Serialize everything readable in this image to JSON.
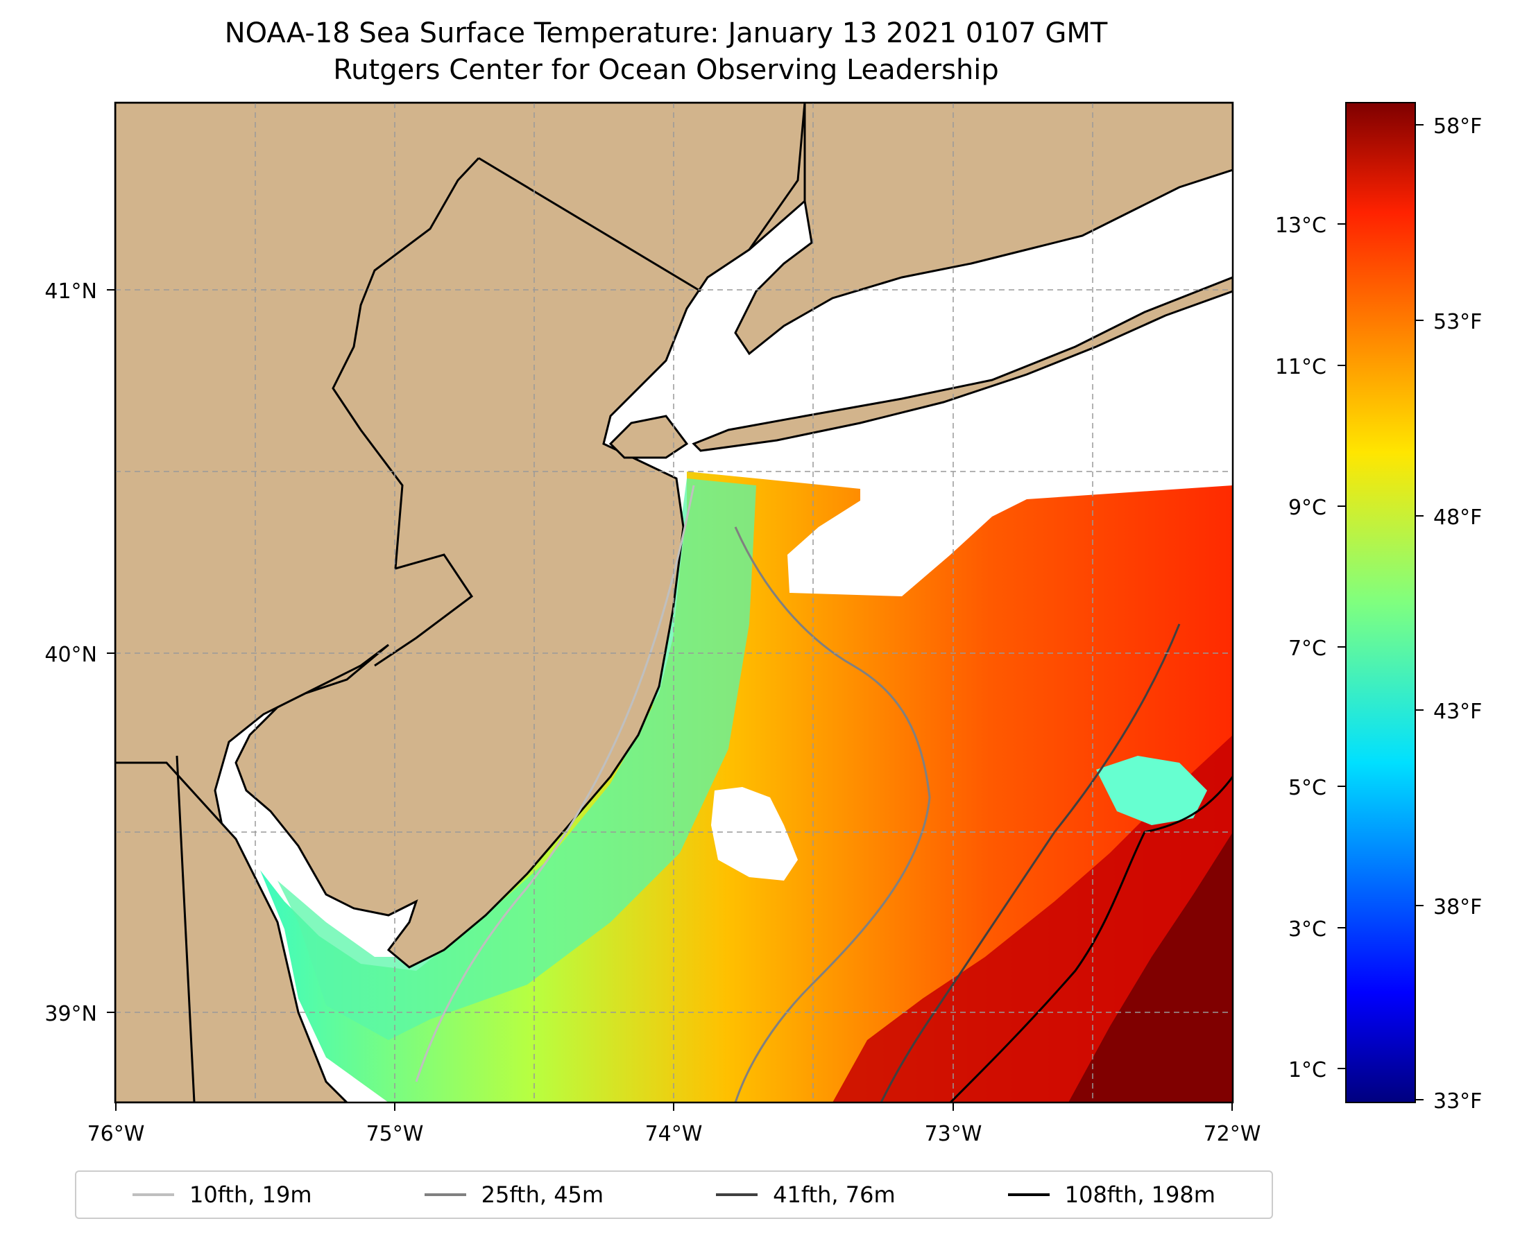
{
  "title": {
    "line1": "NOAA-18 Sea Surface Temperature: January 13 2021 0107 GMT",
    "line2": "Rutgers Center for Ocean Observing Leadership"
  },
  "map": {
    "lon_ticks": [
      "76°W",
      "75°W",
      "74°W",
      "73°W",
      "72°W"
    ],
    "lat_ticks": [
      "41°N",
      "40°N",
      "39°N"
    ],
    "land_color": "#d2b48c",
    "gridlines": true
  },
  "colorbar": {
    "celsius_ticks": [
      "13°C",
      "11°C",
      "9°C",
      "7°C",
      "5°C",
      "3°C",
      "1°C"
    ],
    "fahrenheit_ticks": [
      "58°F",
      "53°F",
      "48°F",
      "43°F",
      "38°F",
      "33°F"
    ],
    "colormap": "jet",
    "range_f": [
      33,
      59
    ]
  },
  "legend": {
    "items": [
      {
        "label": "10fth, 19m",
        "color": "#bfbfbf"
      },
      {
        "label": "25fth, 45m",
        "color": "#808080"
      },
      {
        "label": "41fth, 76m",
        "color": "#404040"
      },
      {
        "label": "108fth, 198m",
        "color": "#000000"
      }
    ]
  }
}
